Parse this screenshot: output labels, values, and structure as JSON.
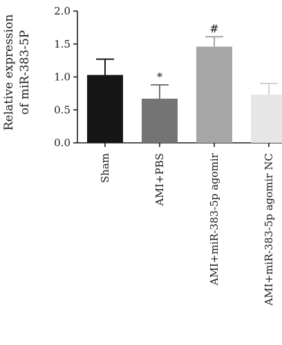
{
  "chart_data": {
    "type": "bar",
    "ylabel_lines": [
      "Relative expression",
      "of miR-383-5P"
    ],
    "xlabel": "",
    "ylim": [
      0,
      2.0
    ],
    "yticks": [
      "0.0",
      "0.5",
      "1.0",
      "1.5",
      "2.0"
    ],
    "categories": [
      "Sham",
      "AMI+PBS",
      "AMI+miR-383-5p agomir",
      "AMI+miR-383-5p agomir NC"
    ],
    "values": [
      1.03,
      0.67,
      1.46,
      0.73
    ],
    "errors": [
      0.24,
      0.21,
      0.15,
      0.17
    ],
    "significance": [
      "",
      "*",
      "#",
      ""
    ],
    "colors": [
      "#161616",
      "#747474",
      "#a6a6a6",
      "#e6e6e6"
    ],
    "grid": false
  }
}
